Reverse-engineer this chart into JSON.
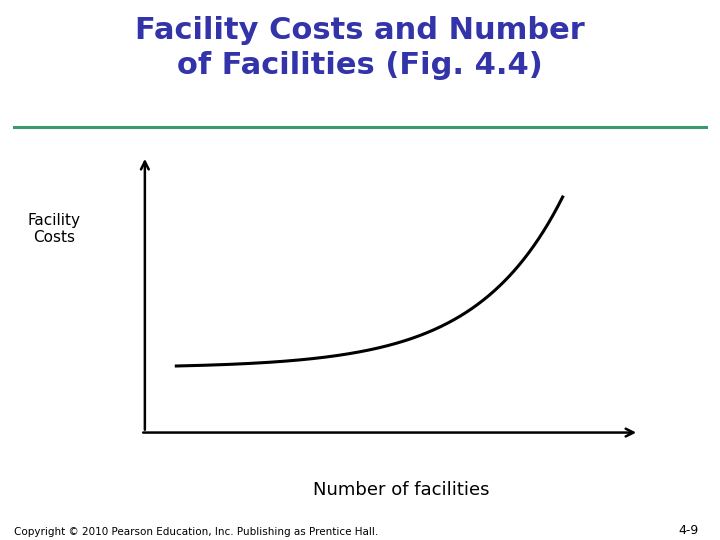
{
  "title_line1": "Facility Costs and Number",
  "title_line2": "of Facilities (Fig. 4.4)",
  "title_color": "#3333AA",
  "title_fontsize": 22,
  "divider_color": "#3A9A6E",
  "ylabel": "Facility\nCosts",
  "ylabel_fontsize": 11,
  "xlabel": "Number of facilities",
  "xlabel_fontsize": 13,
  "curve_color": "#000000",
  "curve_linewidth": 2.2,
  "axis_color": "#000000",
  "axis_linewidth": 1.8,
  "background_color": "#ffffff",
  "copyright_text": "Copyright © 2010 Pearson Education, Inc. Publishing as Prentice Hall.",
  "copyright_fontsize": 7.5,
  "page_number": "4-9",
  "page_number_fontsize": 9
}
